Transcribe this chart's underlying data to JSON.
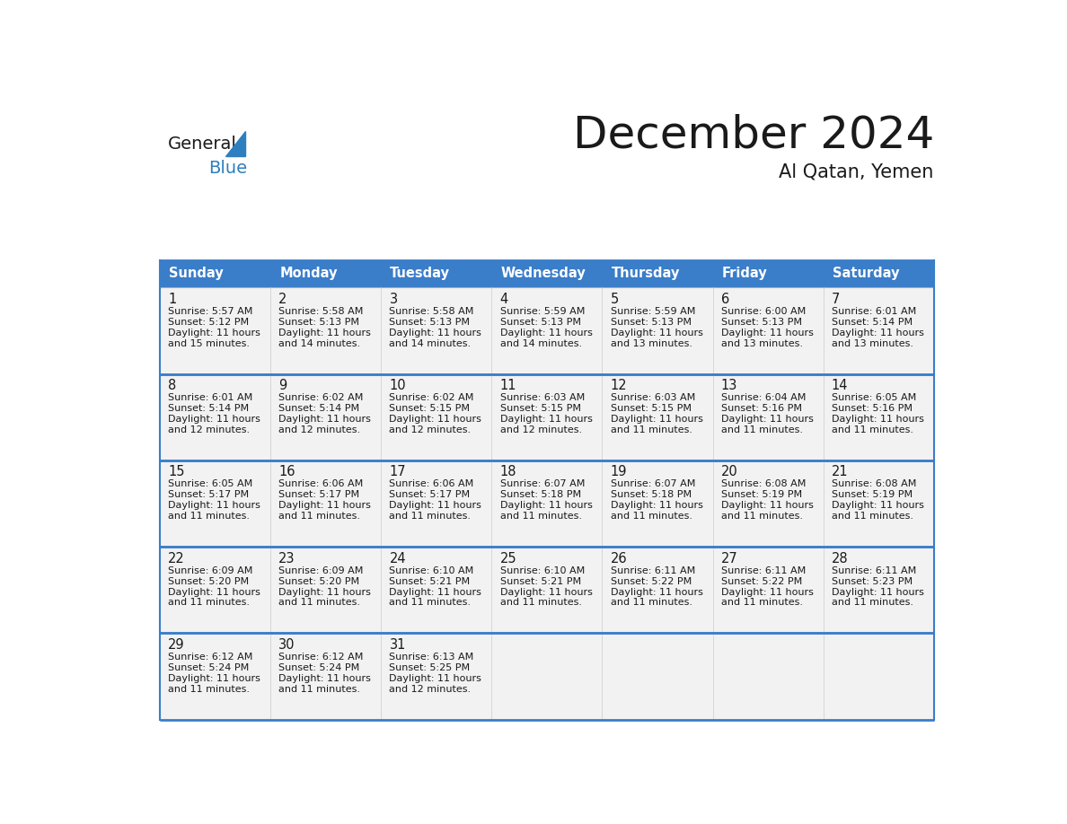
{
  "title": "December 2024",
  "subtitle": "Al Qatan, Yemen",
  "days_of_week": [
    "Sunday",
    "Monday",
    "Tuesday",
    "Wednesday",
    "Thursday",
    "Friday",
    "Saturday"
  ],
  "header_bg_color": "#3A7DC9",
  "header_text_color": "#FFFFFF",
  "cell_bg_color": "#F2F2F2",
  "border_color": "#3A7DC9",
  "title_color": "#1a1a1a",
  "subtitle_color": "#1a1a1a",
  "text_color": "#1a1a1a",
  "days": [
    {
      "day": 1,
      "col": 0,
      "row": 0,
      "sunrise": "5:57 AM",
      "sunset": "5:12 PM",
      "daylight": "11 hours",
      "daylight2": "and 15 minutes."
    },
    {
      "day": 2,
      "col": 1,
      "row": 0,
      "sunrise": "5:58 AM",
      "sunset": "5:13 PM",
      "daylight": "11 hours",
      "daylight2": "and 14 minutes."
    },
    {
      "day": 3,
      "col": 2,
      "row": 0,
      "sunrise": "5:58 AM",
      "sunset": "5:13 PM",
      "daylight": "11 hours",
      "daylight2": "and 14 minutes."
    },
    {
      "day": 4,
      "col": 3,
      "row": 0,
      "sunrise": "5:59 AM",
      "sunset": "5:13 PM",
      "daylight": "11 hours",
      "daylight2": "and 14 minutes."
    },
    {
      "day": 5,
      "col": 4,
      "row": 0,
      "sunrise": "5:59 AM",
      "sunset": "5:13 PM",
      "daylight": "11 hours",
      "daylight2": "and 13 minutes."
    },
    {
      "day": 6,
      "col": 5,
      "row": 0,
      "sunrise": "6:00 AM",
      "sunset": "5:13 PM",
      "daylight": "11 hours",
      "daylight2": "and 13 minutes."
    },
    {
      "day": 7,
      "col": 6,
      "row": 0,
      "sunrise": "6:01 AM",
      "sunset": "5:14 PM",
      "daylight": "11 hours",
      "daylight2": "and 13 minutes."
    },
    {
      "day": 8,
      "col": 0,
      "row": 1,
      "sunrise": "6:01 AM",
      "sunset": "5:14 PM",
      "daylight": "11 hours",
      "daylight2": "and 12 minutes."
    },
    {
      "day": 9,
      "col": 1,
      "row": 1,
      "sunrise": "6:02 AM",
      "sunset": "5:14 PM",
      "daylight": "11 hours",
      "daylight2": "and 12 minutes."
    },
    {
      "day": 10,
      "col": 2,
      "row": 1,
      "sunrise": "6:02 AM",
      "sunset": "5:15 PM",
      "daylight": "11 hours",
      "daylight2": "and 12 minutes."
    },
    {
      "day": 11,
      "col": 3,
      "row": 1,
      "sunrise": "6:03 AM",
      "sunset": "5:15 PM",
      "daylight": "11 hours",
      "daylight2": "and 12 minutes."
    },
    {
      "day": 12,
      "col": 4,
      "row": 1,
      "sunrise": "6:03 AM",
      "sunset": "5:15 PM",
      "daylight": "11 hours",
      "daylight2": "and 11 minutes."
    },
    {
      "day": 13,
      "col": 5,
      "row": 1,
      "sunrise": "6:04 AM",
      "sunset": "5:16 PM",
      "daylight": "11 hours",
      "daylight2": "and 11 minutes."
    },
    {
      "day": 14,
      "col": 6,
      "row": 1,
      "sunrise": "6:05 AM",
      "sunset": "5:16 PM",
      "daylight": "11 hours",
      "daylight2": "and 11 minutes."
    },
    {
      "day": 15,
      "col": 0,
      "row": 2,
      "sunrise": "6:05 AM",
      "sunset": "5:17 PM",
      "daylight": "11 hours",
      "daylight2": "and 11 minutes."
    },
    {
      "day": 16,
      "col": 1,
      "row": 2,
      "sunrise": "6:06 AM",
      "sunset": "5:17 PM",
      "daylight": "11 hours",
      "daylight2": "and 11 minutes."
    },
    {
      "day": 17,
      "col": 2,
      "row": 2,
      "sunrise": "6:06 AM",
      "sunset": "5:17 PM",
      "daylight": "11 hours",
      "daylight2": "and 11 minutes."
    },
    {
      "day": 18,
      "col": 3,
      "row": 2,
      "sunrise": "6:07 AM",
      "sunset": "5:18 PM",
      "daylight": "11 hours",
      "daylight2": "and 11 minutes."
    },
    {
      "day": 19,
      "col": 4,
      "row": 2,
      "sunrise": "6:07 AM",
      "sunset": "5:18 PM",
      "daylight": "11 hours",
      "daylight2": "and 11 minutes."
    },
    {
      "day": 20,
      "col": 5,
      "row": 2,
      "sunrise": "6:08 AM",
      "sunset": "5:19 PM",
      "daylight": "11 hours",
      "daylight2": "and 11 minutes."
    },
    {
      "day": 21,
      "col": 6,
      "row": 2,
      "sunrise": "6:08 AM",
      "sunset": "5:19 PM",
      "daylight": "11 hours",
      "daylight2": "and 11 minutes."
    },
    {
      "day": 22,
      "col": 0,
      "row": 3,
      "sunrise": "6:09 AM",
      "sunset": "5:20 PM",
      "daylight": "11 hours",
      "daylight2": "and 11 minutes."
    },
    {
      "day": 23,
      "col": 1,
      "row": 3,
      "sunrise": "6:09 AM",
      "sunset": "5:20 PM",
      "daylight": "11 hours",
      "daylight2": "and 11 minutes."
    },
    {
      "day": 24,
      "col": 2,
      "row": 3,
      "sunrise": "6:10 AM",
      "sunset": "5:21 PM",
      "daylight": "11 hours",
      "daylight2": "and 11 minutes."
    },
    {
      "day": 25,
      "col": 3,
      "row": 3,
      "sunrise": "6:10 AM",
      "sunset": "5:21 PM",
      "daylight": "11 hours",
      "daylight2": "and 11 minutes."
    },
    {
      "day": 26,
      "col": 4,
      "row": 3,
      "sunrise": "6:11 AM",
      "sunset": "5:22 PM",
      "daylight": "11 hours",
      "daylight2": "and 11 minutes."
    },
    {
      "day": 27,
      "col": 5,
      "row": 3,
      "sunrise": "6:11 AM",
      "sunset": "5:22 PM",
      "daylight": "11 hours",
      "daylight2": "and 11 minutes."
    },
    {
      "day": 28,
      "col": 6,
      "row": 3,
      "sunrise": "6:11 AM",
      "sunset": "5:23 PM",
      "daylight": "11 hours",
      "daylight2": "and 11 minutes."
    },
    {
      "day": 29,
      "col": 0,
      "row": 4,
      "sunrise": "6:12 AM",
      "sunset": "5:24 PM",
      "daylight": "11 hours",
      "daylight2": "and 11 minutes."
    },
    {
      "day": 30,
      "col": 1,
      "row": 4,
      "sunrise": "6:12 AM",
      "sunset": "5:24 PM",
      "daylight": "11 hours",
      "daylight2": "and 11 minutes."
    },
    {
      "day": 31,
      "col": 2,
      "row": 4,
      "sunrise": "6:13 AM",
      "sunset": "5:25 PM",
      "daylight": "11 hours",
      "daylight2": "and 12 minutes."
    }
  ],
  "num_rows": 5,
  "logo_general_color": "#1a1a1a",
  "logo_blue_color": "#2E7FBF"
}
